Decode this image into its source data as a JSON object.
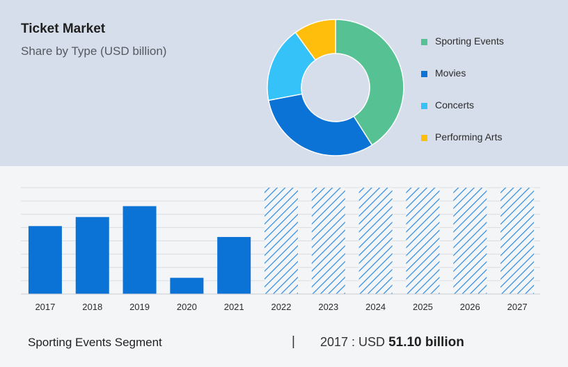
{
  "title": "Ticket Market",
  "subtitle": "Share by Type (USD billion)",
  "chart_data": [
    {
      "type": "pie",
      "categories": [
        "Sporting Events",
        "Movies",
        "Concerts",
        "Performing Arts"
      ],
      "values": [
        41,
        31,
        18,
        10
      ],
      "colors": [
        "#56c293",
        "#0b72d6",
        "#34c2f8",
        "#ffbe0b"
      ],
      "legend_position": "right"
    },
    {
      "type": "bar",
      "categories": [
        "2017",
        "2018",
        "2019",
        "2020",
        "2021",
        "2022",
        "2023",
        "2024",
        "2025",
        "2026",
        "2027"
      ],
      "values": [
        51.1,
        57.9,
        66.1,
        12.2,
        42.9,
        null,
        null,
        null,
        null,
        null,
        null
      ],
      "forecast_categories": [
        "2022",
        "2023",
        "2024",
        "2025",
        "2026",
        "2027"
      ],
      "bar_color": "#0b72d6",
      "forecast_pattern": "hatched",
      "forecast_color": "#2a8ae0",
      "ylim": [
        0,
        80
      ],
      "grid": true
    }
  ],
  "footer": {
    "segment_label": "Sporting Events Segment",
    "separator": "|",
    "year_prefix": "2017 : USD",
    "value_text": "51.10 billion"
  }
}
